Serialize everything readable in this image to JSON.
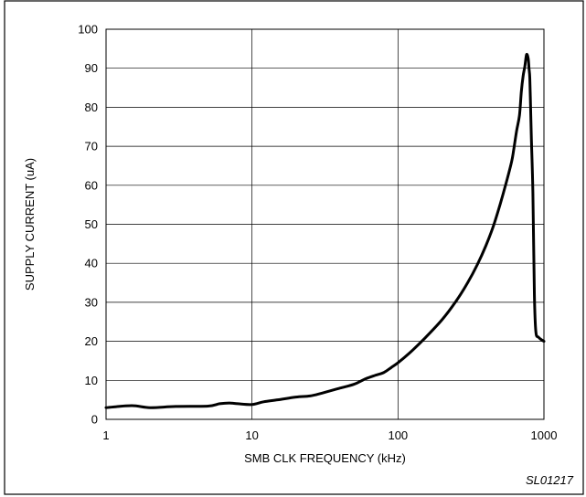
{
  "chart_data": {
    "type": "line",
    "title": "",
    "xlabel": "SMB CLK FREQUENCY (kHz)",
    "ylabel": "SUPPLY CURRENT (uA)",
    "x_scale": "log",
    "xlim": [
      1,
      1000
    ],
    "ylim": [
      0,
      100
    ],
    "grid": true,
    "x_ticks": [
      1,
      10,
      100,
      1000
    ],
    "x_tick_labels": [
      "1",
      "10",
      "100",
      "1000"
    ],
    "y_ticks": [
      0,
      10,
      20,
      30,
      40,
      50,
      60,
      70,
      80,
      90,
      100
    ],
    "y_tick_labels": [
      "0",
      "10",
      "20",
      "30",
      "40",
      "50",
      "60",
      "70",
      "80",
      "90",
      "100"
    ],
    "annotation": "SL01217",
    "series": [
      {
        "x": [
          1,
          1.5,
          2,
          3,
          5,
          6,
          7,
          8,
          10,
          12,
          15,
          20,
          25,
          30,
          40,
          50,
          60,
          70,
          80,
          90,
          100,
          120,
          150,
          200,
          250,
          300,
          350,
          400,
          450,
          500,
          550,
          600,
          620,
          650,
          680,
          700,
          720,
          740,
          760,
          780,
          790,
          800,
          810,
          820,
          840,
          860,
          880,
          920,
          1000
        ],
        "y": [
          3,
          3.5,
          3,
          3.3,
          3.4,
          4,
          4.2,
          4,
          3.8,
          4.5,
          5,
          5.7,
          6,
          6.7,
          8,
          9,
          10.4,
          11.3,
          12,
          13.3,
          14.5,
          17,
          20.5,
          25.5,
          30.3,
          35,
          39.7,
          44.5,
          49.5,
          55,
          60.5,
          66,
          69,
          74,
          78,
          84,
          88,
          90.5,
          93.5,
          92.5,
          90,
          87.5,
          80,
          72,
          58,
          32,
          22.5,
          21,
          20
        ]
      }
    ]
  }
}
